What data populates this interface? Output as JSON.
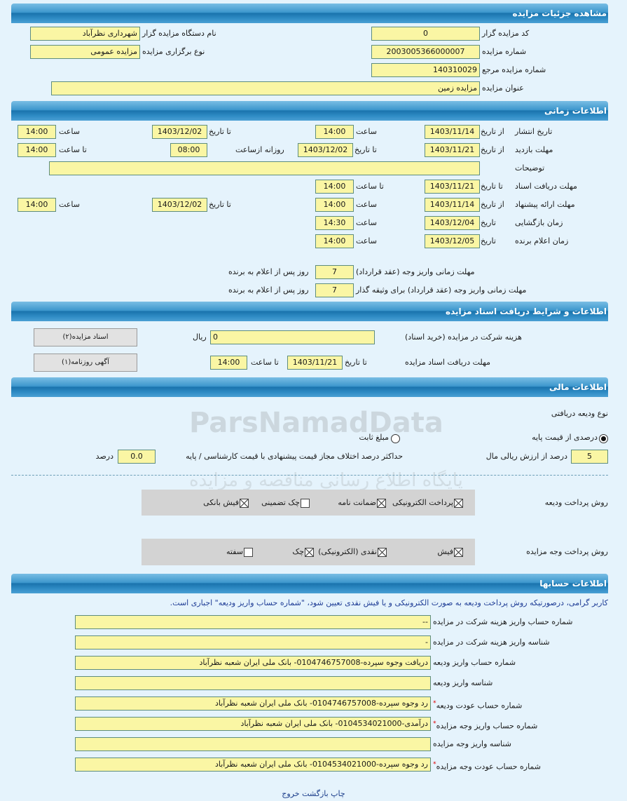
{
  "watermark": {
    "brand": "ParsNamadData",
    "subtitle": "پایگاه اطلاع رسانی مناقصه و مزایده"
  },
  "header": {
    "title": "مشاهده جزئیات مزایده"
  },
  "auction": {
    "organizer_code_label": "کد مزایده گزار",
    "organizer_code": "0",
    "organizer_name_label": "نام دستگاه مزایده گزار",
    "organizer_name": "شهرداری نظرآباد",
    "number_label": "شماره مزایده",
    "number": "2003005366000007",
    "type_label": "نوع برگزاری مزایده",
    "type": "مزایده عمومی",
    "ref_label": "شماره مزایده مرجع",
    "ref": "140310029",
    "title_label": "عنوان مزایده",
    "title": "مزایده زمین"
  },
  "time": {
    "section_title": "اطلاعات زمانی",
    "publish": {
      "label": "تاریخ انتشار",
      "from_label": "از تاریخ",
      "from": "1403/11/14",
      "time_label": "ساعت",
      "time": "14:00",
      "to_label": "تا تاریخ",
      "to": "1403/12/02",
      "to_time_label": "ساعت",
      "to_time": "14:00"
    },
    "visit": {
      "label": "مهلت بازدید",
      "from_label": "از تاریخ",
      "from": "1403/11/21",
      "to_label": "تا تاریخ",
      "to": "1403/12/02",
      "daily_label": "روزانه ازساعت",
      "daily_from": "08:00",
      "to_time_label": "تا ساعت",
      "to_time": "14:00"
    },
    "description_label": "توضیحات",
    "description": "",
    "docs": {
      "label": "مهلت دریافت اسناد",
      "to_label": "تا تاریخ",
      "to": "1403/11/21",
      "time_label": "تا ساعت",
      "time": "14:00"
    },
    "offer": {
      "label": "مهلت ارائه پیشنهاد",
      "from_label": "از تاریخ",
      "from": "1403/11/14",
      "time_label": "ساعت",
      "time": "14:00",
      "to_label": "تا تاریخ",
      "to": "1403/12/02",
      "to_time_label": "ساعت",
      "to_time": "14:00"
    },
    "opening": {
      "label": "زمان بازگشایی",
      "date_label": "تاریخ",
      "date": "1403/12/04",
      "time_label": "ساعت",
      "time": "14:30"
    },
    "winner": {
      "label": "زمان اعلام برنده",
      "date_label": "تاریخ",
      "date": "1403/12/05",
      "time_label": "ساعت",
      "time": "14:00"
    },
    "contract_label": "مهلت زمانی واریز وجه (عقد قرارداد)",
    "contract_days": "7",
    "contract_suffix": "روز پس از اعلام به برنده",
    "guarantor_label": "مهلت زمانی واریز وجه (عقد قرارداد) برای وثیقه گذار",
    "guarantor_days": "7",
    "guarantor_suffix": "روز پس از اعلام به برنده"
  },
  "docs": {
    "section_title": "اطلاعات و شرایط دریافت اسناد مزایده",
    "fee_label": "هزینه شرکت در مزایده (خرید اسناد)",
    "fee": "0",
    "currency": "ریال",
    "deadline_label": "مهلت دریافت اسناد مزایده",
    "to_label": "تا تاریخ",
    "to": "1403/11/21",
    "time_label": "تا ساعت",
    "time": "14:00",
    "btn_docs": "اسناد مزایده(۲)",
    "btn_ad": "آگهی روزنامه(۱)"
  },
  "finance": {
    "section_title": "اطلاعات مالی",
    "deposit_type_label": "نوع ودیعه دریافتی",
    "opt_percent": "درصدی از قیمت پایه",
    "opt_fixed": "مبلغ ثابت",
    "selected": "percent",
    "percent": "5",
    "percent_suffix": "درصد از ارزش ریالی مال",
    "max_diff_label": "حداکثر درصد اختلاف مجاز قیمت پیشنهادی با قیمت کارشناسی / پایه",
    "max_diff": "0.0",
    "max_diff_suffix": "درصد",
    "deposit_method_label": "روش پرداخت ودیعه",
    "deposit_methods": [
      {
        "label": "پرداخت الکترونیکی",
        "checked": true
      },
      {
        "label": "ضمانت نامه",
        "checked": true
      },
      {
        "label": "چک تضمینی",
        "checked": false
      },
      {
        "label": "فیش بانکی",
        "checked": true
      }
    ],
    "payment_method_label": "روش پرداخت وجه مزایده",
    "payment_methods": [
      {
        "label": "فیش",
        "checked": true
      },
      {
        "label": "نقدی (الکترونیکی)",
        "checked": true
      },
      {
        "label": "چک",
        "checked": true
      },
      {
        "label": "سفته",
        "checked": false
      }
    ]
  },
  "accounts": {
    "section_title": "اطلاعات حسابها",
    "note": "کاربر گرامی، درصورتیکه روش پرداخت ودیعه به صورت الکترونیکی و یا فیش نقدی تعیین شود، \"شماره حساب واریز ودیعه\" اجباری است.",
    "rows": [
      {
        "label": "شماره حساب واریز هزینه شرکت در مزایده",
        "value": "--",
        "required": false
      },
      {
        "label": "شناسه واریز هزینه شرکت در مزایده",
        "value": "-",
        "required": false
      },
      {
        "label": "شماره حساب واریز ودیعه",
        "value": "دریافت وجوه سپرده-0104746757008- بانک ملی ایران شعبه نظرآباد",
        "required": false
      },
      {
        "label": "شناسه واریز ودیعه",
        "value": "",
        "required": false
      },
      {
        "label": "شماره حساب عودت ودیعه",
        "value": "رد وجوه سپرده-0104746757008- بانک ملی ایران شعبه نظرآباد",
        "required": true
      },
      {
        "label": "شماره حساب واریز وجه مزایده",
        "value": "درآمدی-0104534021000- بانک ملی ایران شعبه نظرآباد",
        "required": true
      },
      {
        "label": "شناسه واریز وجه مزایده",
        "value": "",
        "required": false
      },
      {
        "label": "شماره حساب عودت وجه مزایده",
        "value": "رد وجوه سپرده-0104534021000- بانک ملی ایران شعبه نظرآباد",
        "required": true
      }
    ],
    "required_mark": "*"
  },
  "footer": {
    "print": "چاپ",
    "back": "بازگشت",
    "exit": "خروج"
  }
}
